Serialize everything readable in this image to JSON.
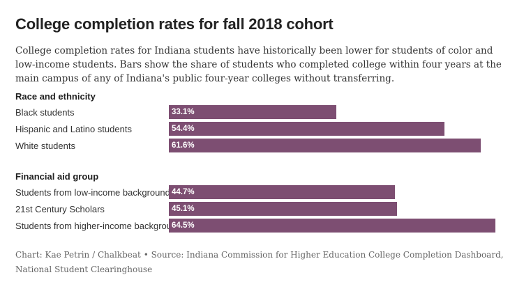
{
  "chart_data": {
    "type": "bar",
    "orientation": "horizontal",
    "title": "College completion rates for fall 2018 cohort",
    "subtitle": "College completion rates for Indiana students have historically been lower for students of color and low-income students. Bars show the share of students who completed college within four years at the main campus of any of Indiana's public four-year colleges without transferring.",
    "xlim": [
      0,
      64.5
    ],
    "grid": false,
    "bar_color": "#7d4e72",
    "groups": [
      {
        "label": "Race and ethnicity",
        "categories": [
          "Black students",
          "Hispanic and Latino students",
          "White students"
        ],
        "values": [
          33.1,
          54.4,
          61.6
        ],
        "value_labels": [
          "33.1%",
          "54.4%",
          "61.6%"
        ]
      },
      {
        "label": "Financial aid group",
        "categories": [
          "Students from low-income backgrounds",
          "21st Century Scholars",
          "Students from higher-income backgrounds"
        ],
        "values": [
          44.7,
          45.1,
          64.5
        ],
        "value_labels": [
          "44.7%",
          "45.1%",
          "64.5%"
        ]
      }
    ],
    "source": "Chart: Kae Petrin / Chalkbeat • Source: Indiana Commission for Higher Education College Completion Dashboard, National Student Clearinghouse"
  }
}
